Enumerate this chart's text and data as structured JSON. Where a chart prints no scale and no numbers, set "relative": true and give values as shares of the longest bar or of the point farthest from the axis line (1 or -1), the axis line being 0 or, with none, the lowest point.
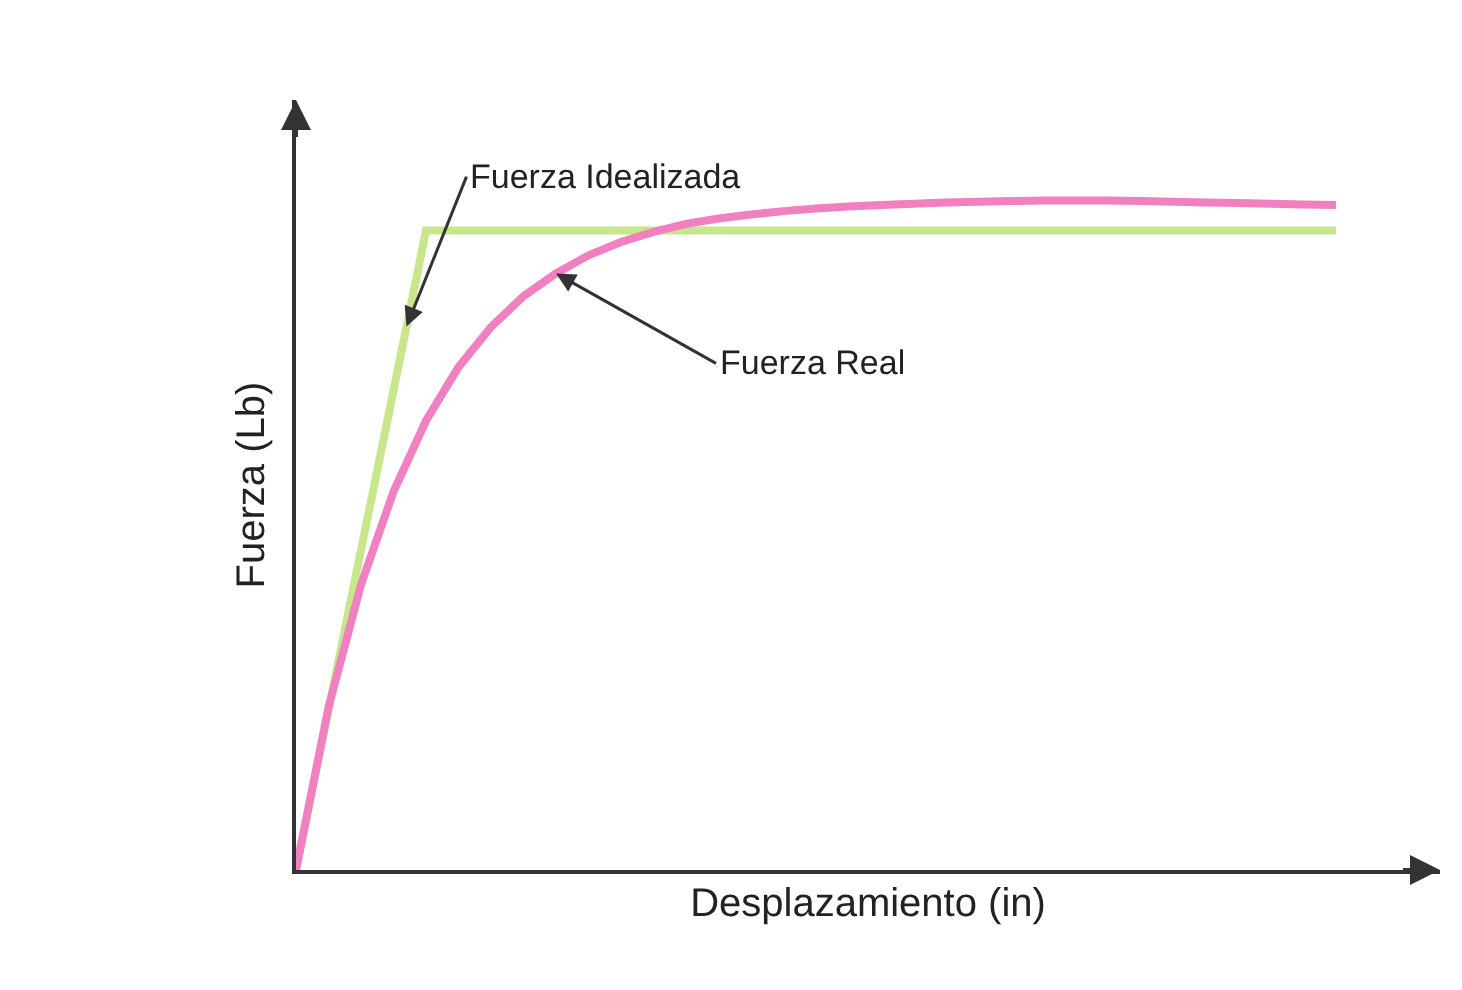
{
  "chart_data": {
    "type": "line",
    "relative": true,
    "xlabel": "Desplazamiento (in)",
    "ylabel": "Fuerza (Lb)",
    "categories": [
      null,
      null,
      null,
      null,
      null,
      null,
      null,
      null,
      null,
      null,
      null,
      null,
      null,
      null,
      null,
      null,
      null,
      null,
      null,
      null,
      null,
      null,
      null,
      null,
      null,
      null,
      null,
      null,
      null,
      null,
      null,
      null,
      null
    ],
    "series": [
      {
        "color": "#c8e68c",
        "values": [
          0,
          0.239,
          0.478,
          0.716,
          0.955,
          0.955,
          0.955,
          0.955,
          0.955,
          0.955,
          0.955,
          0.955,
          0.955,
          0.955,
          0.955,
          0.955,
          0.955,
          0.955,
          0.955,
          0.955,
          0.955,
          0.955,
          0.955,
          0.955,
          0.955,
          0.955,
          0.955,
          0.955,
          0.955,
          0.955,
          0.955,
          0.955,
          0.955
        ]
      },
      {
        "color": "#f080c0",
        "values": [
          0,
          0.243,
          0.426,
          0.565,
          0.671,
          0.751,
          0.811,
          0.857,
          0.891,
          0.918,
          0.938,
          0.953,
          0.965,
          0.973,
          0.979,
          0.984,
          0.988,
          0.991,
          0.993,
          0.995,
          0.997,
          0.998,
          0.999,
          1.0,
          1.0,
          1.0,
          0.999,
          0.998,
          0.997,
          0.996,
          0.995,
          0.994,
          0.993
        ]
      }
    ],
    "annotations": [
      "Fuerza Idealizada",
      "Fuerza Real"
    ],
    "legend": false,
    "marker": "none",
    "line_style": "solid"
  }
}
